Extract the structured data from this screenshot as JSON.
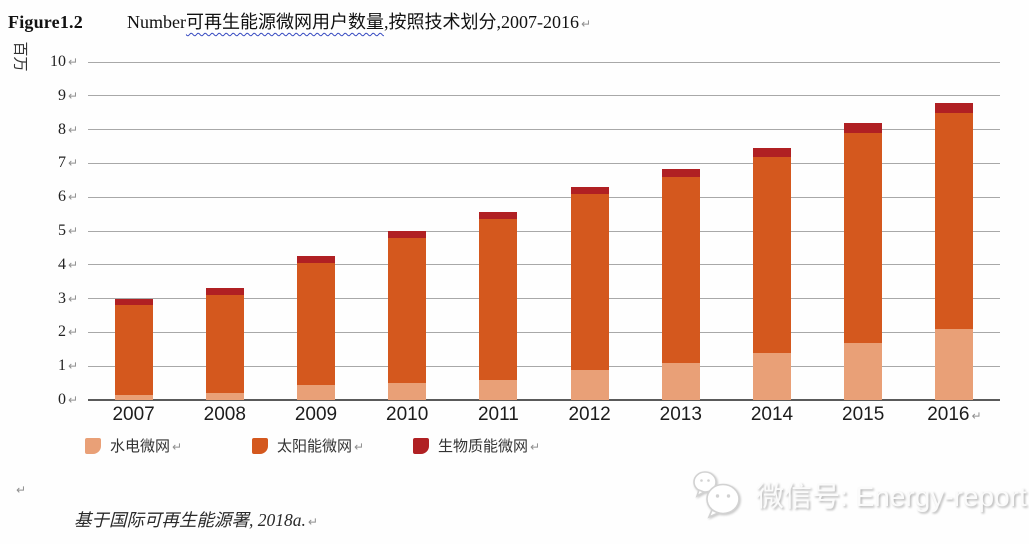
{
  "title": {
    "figure_label": "Figure1.2",
    "pre": "Number",
    "underlined": "可再生能源微网用户数量",
    "post": ",按照技术划分,2007-2016",
    "underline_color": "#3347c0"
  },
  "marks": {
    "paragraph": "↵"
  },
  "chart_data": {
    "type": "bar",
    "stacked": true,
    "title": "Number可再生能源微网用户数量,按照技术划分,2007-2016",
    "ylabel": "百万",
    "xlabel": "",
    "ylim": [
      0,
      10
    ],
    "ytick_step": 1,
    "grid": true,
    "legend_position": "bottom",
    "categories": [
      "2007",
      "2008",
      "2009",
      "2010",
      "2011",
      "2012",
      "2013",
      "2014",
      "2015",
      "2016"
    ],
    "series": [
      {
        "name": "水电微网",
        "color": "#E9A077",
        "values": [
          0.15,
          0.2,
          0.45,
          0.5,
          0.6,
          0.9,
          1.1,
          1.4,
          1.7,
          2.1
        ]
      },
      {
        "name": "太阳能微网",
        "color": "#D4581E",
        "values": [
          2.65,
          2.9,
          3.6,
          4.3,
          4.75,
          5.2,
          5.5,
          5.8,
          6.2,
          6.4
        ]
      },
      {
        "name": "生物质能微网",
        "color": "#B02023",
        "values": [
          0.2,
          0.2,
          0.2,
          0.2,
          0.2,
          0.2,
          0.25,
          0.25,
          0.3,
          0.3
        ]
      }
    ],
    "totals": [
      3.0,
      3.3,
      4.25,
      5.0,
      5.55,
      6.3,
      6.85,
      7.45,
      8.2,
      8.8
    ]
  },
  "footer": {
    "source_note": "基于国际可再生能源署, 2018a."
  },
  "watermark": {
    "label": "微信号: Energy-report",
    "icon": "wechat-icon"
  }
}
